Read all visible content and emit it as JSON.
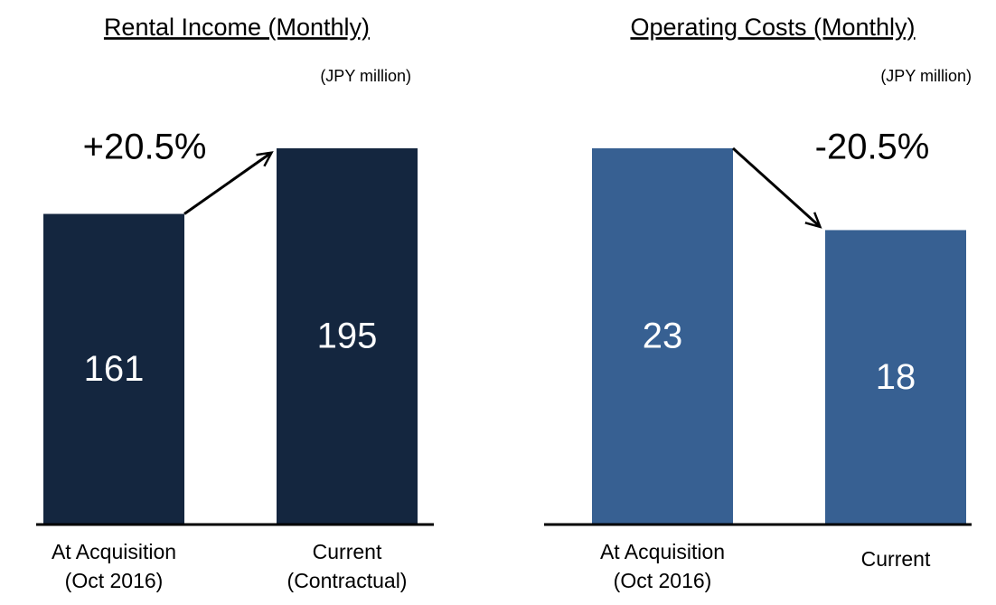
{
  "chart_data": [
    {
      "type": "bar",
      "title": "Rental Income (Monthly)",
      "unit": "(JPY million)",
      "categories": [
        [
          "At Acquisition",
          "(Oct 2016)"
        ],
        [
          "Current",
          "(Contractual)"
        ]
      ],
      "values": [
        161,
        195
      ],
      "color": "#14263f",
      "annotation": "+20.5%"
    },
    {
      "type": "bar",
      "title": "Operating Costs (Monthly)",
      "unit": "(JPY million)",
      "categories": [
        [
          "At Acquisition",
          "(Oct 2016)"
        ],
        [
          "Current"
        ]
      ],
      "values": [
        23,
        18
      ],
      "color": "#376092",
      "annotation": "-20.5%"
    }
  ]
}
